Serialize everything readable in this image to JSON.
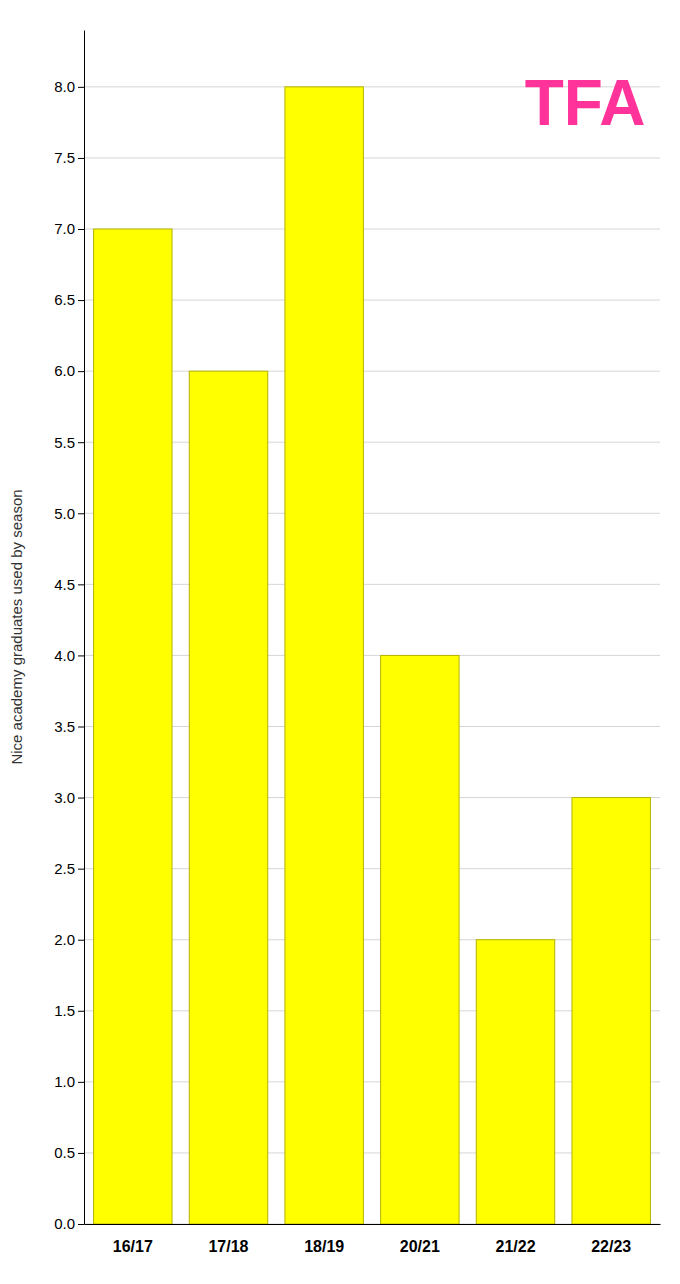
{
  "chart_data": {
    "type": "bar",
    "categories": [
      "16/17",
      "17/18",
      "18/19",
      "20/21",
      "21/22",
      "22/23"
    ],
    "values": [
      7,
      6,
      8,
      4,
      2,
      3
    ],
    "color": "#FFFF00",
    "ylabel": "Nice academy graduates used by season",
    "ylim": [
      0,
      8.4
    ],
    "yticks": [
      {
        "value": 0.0,
        "label": "0.0"
      },
      0.5,
      {
        "value": 1.0,
        "label": "1.0"
      },
      1.5,
      {
        "value": 2.0,
        "label": "2.0"
      },
      2.5,
      {
        "value": 3.0,
        "label": "3.0"
      },
      3.5,
      {
        "value": 4.0,
        "label": "4.0"
      },
      4.5,
      {
        "value": 5.0,
        "label": "5.0"
      },
      5.5,
      {
        "value": 6.0,
        "label": "6.0"
      },
      6.5,
      {
        "value": 7.0,
        "label": "7.0"
      },
      7.5,
      {
        "value": 8.0,
        "label": "8.0"
      }
    ],
    "grid": true,
    "annotations": [
      {
        "text": "TFA",
        "color": "#ff3399"
      }
    ]
  }
}
